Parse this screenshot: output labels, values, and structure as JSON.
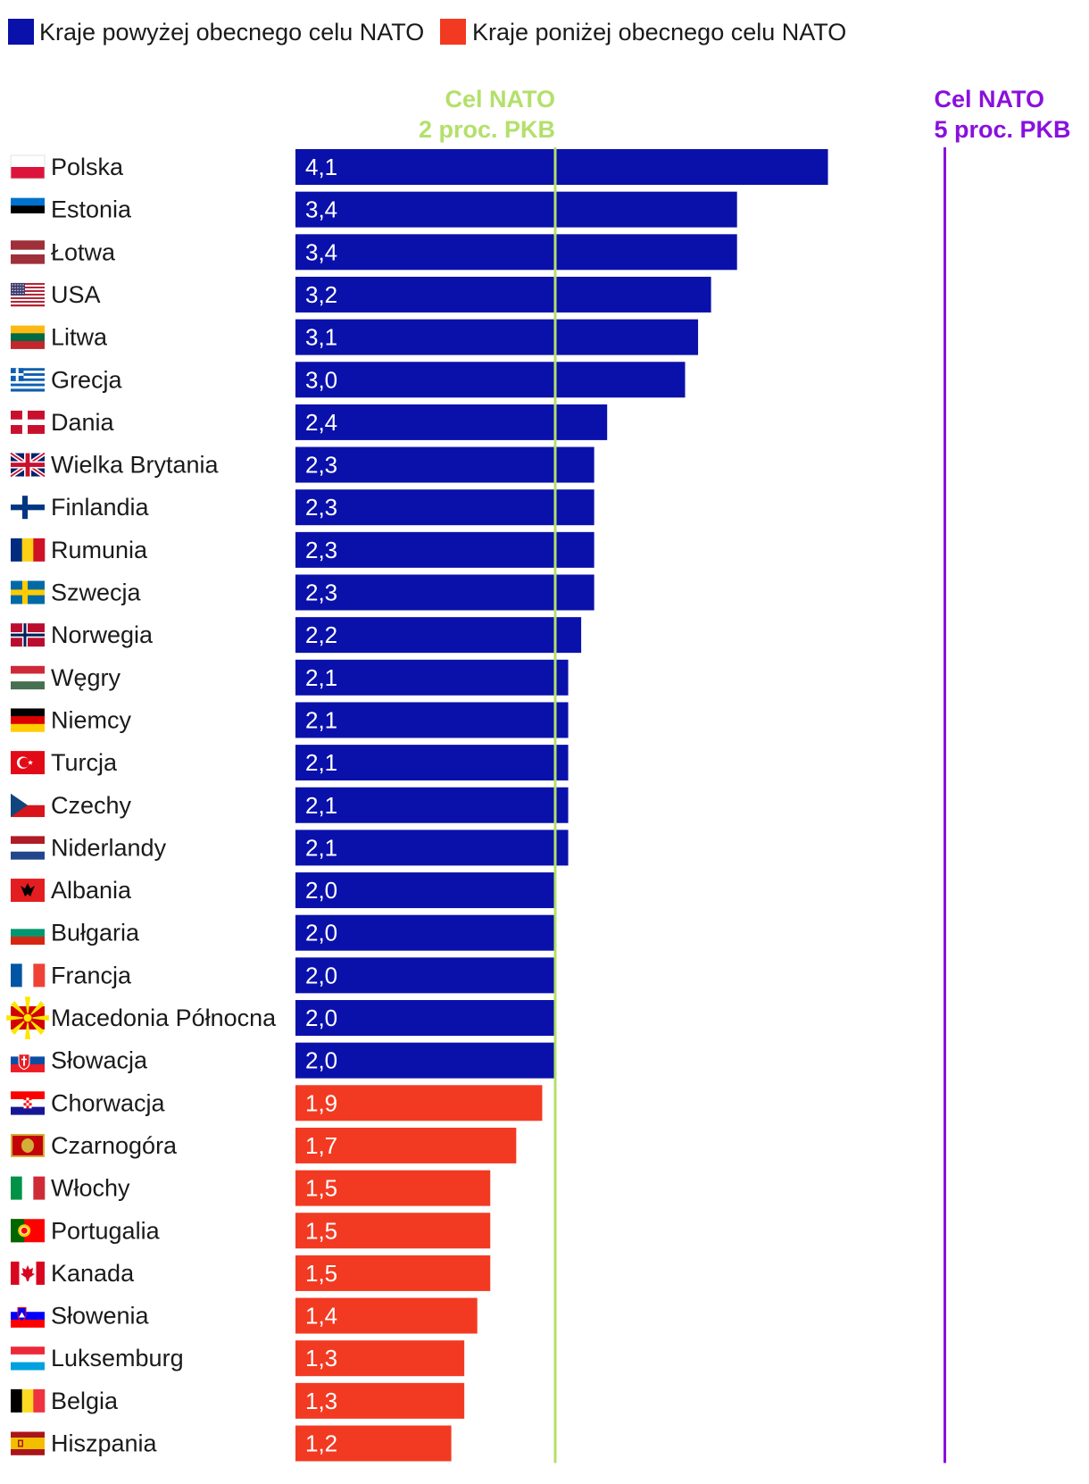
{
  "chart_data": {
    "type": "bar",
    "orientation": "horizontal",
    "legend": [
      {
        "label": "Kraje powyżej obecnego celu NATO",
        "color": "#0a11aa"
      },
      {
        "label": "Kraje poniżej obecnego celu NATO",
        "color": "#f23a22"
      }
    ],
    "reference_lines": [
      {
        "title": "Cel NATO",
        "subtitle": "2 proc. PKB",
        "value": 2.0,
        "color": "#b3e06a"
      },
      {
        "title": "Cel NATO",
        "subtitle": "5 proc. PKB",
        "value": 5.0,
        "color": "#8a10dd"
      }
    ],
    "categories": [
      "Polska",
      "Estonia",
      "Łotwa",
      "USA",
      "Litwa",
      "Grecja",
      "Dania",
      "Wielka Brytania",
      "Finlandia",
      "Rumunia",
      "Szwecja",
      "Norwegia",
      "Węgry",
      "Niemcy",
      "Turcja",
      "Czechy",
      "Niderlandy",
      "Albania",
      "Bułgaria",
      "Francja",
      "Macedonia Północna",
      "Słowacja",
      "Chorwacja",
      "Czarnogóra",
      "Włochy",
      "Portugalia",
      "Kanada",
      "Słowenia",
      "Luksemburg",
      "Belgia",
      "Hiszpania"
    ],
    "values": [
      4.1,
      3.4,
      3.4,
      3.2,
      3.1,
      3.0,
      2.4,
      2.3,
      2.3,
      2.3,
      2.3,
      2.2,
      2.1,
      2.1,
      2.1,
      2.1,
      2.1,
      2.0,
      2.0,
      2.0,
      2.0,
      2.0,
      1.9,
      1.7,
      1.5,
      1.5,
      1.5,
      1.4,
      1.3,
      1.3,
      1.2
    ],
    "value_labels": [
      "4,1",
      "3,4",
      "3,4",
      "3,2",
      "3,1",
      "3,0",
      "2,4",
      "2,3",
      "2,3",
      "2,3",
      "2,3",
      "2,2",
      "2,1",
      "2,1",
      "2,1",
      "2,1",
      "2,1",
      "2,0",
      "2,0",
      "2,0",
      "2,0",
      "2,0",
      "1,9",
      "1,7",
      "1,5",
      "1,5",
      "1,5",
      "1,4",
      "1,3",
      "1,3",
      "1,2"
    ],
    "groups": [
      "above",
      "above",
      "above",
      "above",
      "above",
      "above",
      "above",
      "above",
      "above",
      "above",
      "above",
      "above",
      "above",
      "above",
      "above",
      "above",
      "above",
      "above",
      "above",
      "above",
      "above",
      "above",
      "below",
      "below",
      "below",
      "below",
      "below",
      "below",
      "below",
      "below",
      "below"
    ],
    "flags": [
      "pl",
      "ee",
      "lv",
      "us",
      "lt",
      "gr",
      "dk",
      "gb",
      "fi",
      "ro",
      "se",
      "no",
      "hu",
      "de",
      "tr",
      "cz",
      "nl",
      "al",
      "bg",
      "fr",
      "mk",
      "sk",
      "hr",
      "me",
      "it",
      "pt",
      "ca",
      "si",
      "lu",
      "be",
      "es"
    ],
    "xlim": [
      0,
      5.5
    ],
    "colors": {
      "above": "#0a11aa",
      "below": "#f23a22",
      "bar_text": "#ffffff",
      "label_text": "#1a1a1a"
    }
  }
}
